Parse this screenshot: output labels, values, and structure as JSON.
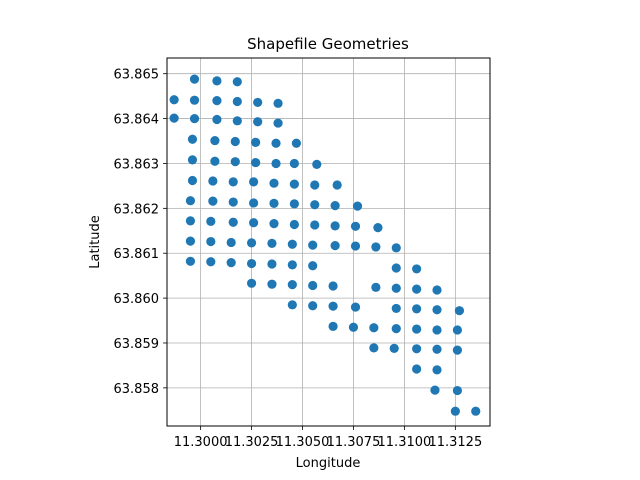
{
  "chart_data": {
    "type": "scatter",
    "title": "Shapefile Geometries",
    "xlabel": "Longitude",
    "ylabel": "Latitude",
    "xlim": [
      11.29835,
      11.3142
    ],
    "ylim": [
      63.85715,
      63.86535
    ],
    "xticks": [
      {
        "value": 11.3,
        "label": "11.3000"
      },
      {
        "value": 11.3025,
        "label": "11.3025"
      },
      {
        "value": 11.305,
        "label": "11.3050"
      },
      {
        "value": 11.3075,
        "label": "11.3075"
      },
      {
        "value": 11.31,
        "label": "11.3100"
      },
      {
        "value": 11.3125,
        "label": "11.3125"
      }
    ],
    "yticks": [
      {
        "value": 63.858,
        "label": "63.858"
      },
      {
        "value": 63.859,
        "label": "63.859"
      },
      {
        "value": 63.86,
        "label": "63.860"
      },
      {
        "value": 63.861,
        "label": "63.861"
      },
      {
        "value": 63.862,
        "label": "63.862"
      },
      {
        "value": 63.863,
        "label": "63.863"
      },
      {
        "value": 63.864,
        "label": "63.864"
      },
      {
        "value": 63.865,
        "label": "63.865"
      }
    ],
    "grid": true,
    "marker_color": "#1f77b4",
    "points": [
      [
        11.2997,
        63.86488
      ],
      [
        11.3008,
        63.86484
      ],
      [
        11.3018,
        63.86482
      ],
      [
        11.2987,
        63.86442
      ],
      [
        11.2997,
        63.86441
      ],
      [
        11.3008,
        63.8644
      ],
      [
        11.3018,
        63.86438
      ],
      [
        11.3028,
        63.86436
      ],
      [
        11.3038,
        63.86434
      ],
      [
        11.2987,
        63.86401
      ],
      [
        11.2997,
        63.864
      ],
      [
        11.3008,
        63.86398
      ],
      [
        11.3018,
        63.86395
      ],
      [
        11.3028,
        63.86393
      ],
      [
        11.3038,
        63.8639
      ],
      [
        11.2996,
        63.86354
      ],
      [
        11.3007,
        63.86351
      ],
      [
        11.3017,
        63.86349
      ],
      [
        11.3027,
        63.86347
      ],
      [
        11.3037,
        63.86345
      ],
      [
        11.3047,
        63.86345
      ],
      [
        11.2996,
        63.86308
      ],
      [
        11.3007,
        63.86305
      ],
      [
        11.3017,
        63.86304
      ],
      [
        11.3027,
        63.86302
      ],
      [
        11.3037,
        63.863
      ],
      [
        11.3046,
        63.863
      ],
      [
        11.3057,
        63.86298
      ],
      [
        11.2996,
        63.86262
      ],
      [
        11.3006,
        63.86261
      ],
      [
        11.3016,
        63.86259
      ],
      [
        11.3026,
        63.86259
      ],
      [
        11.3036,
        63.86256
      ],
      [
        11.3046,
        63.86254
      ],
      [
        11.3056,
        63.86252
      ],
      [
        11.3067,
        63.86252
      ],
      [
        11.2995,
        63.86217
      ],
      [
        11.3006,
        63.86216
      ],
      [
        11.3016,
        63.86214
      ],
      [
        11.3026,
        63.86212
      ],
      [
        11.3036,
        63.86211
      ],
      [
        11.3046,
        63.8621
      ],
      [
        11.3056,
        63.86208
      ],
      [
        11.3066,
        63.86206
      ],
      [
        11.3077,
        63.86205
      ],
      [
        11.2995,
        63.86172
      ],
      [
        11.3005,
        63.86171
      ],
      [
        11.3016,
        63.86169
      ],
      [
        11.3026,
        63.86168
      ],
      [
        11.3036,
        63.86166
      ],
      [
        11.3046,
        63.86164
      ],
      [
        11.3056,
        63.86163
      ],
      [
        11.3066,
        63.86161
      ],
      [
        11.3076,
        63.8616
      ],
      [
        11.3087,
        63.86157
      ],
      [
        11.2995,
        63.86127
      ],
      [
        11.3005,
        63.86126
      ],
      [
        11.3015,
        63.86124
      ],
      [
        11.3025,
        63.86123
      ],
      [
        11.3035,
        63.86122
      ],
      [
        11.3045,
        63.8612
      ],
      [
        11.3055,
        63.86118
      ],
      [
        11.3066,
        63.86117
      ],
      [
        11.3076,
        63.86116
      ],
      [
        11.3086,
        63.86114
      ],
      [
        11.3096,
        63.86112
      ],
      [
        11.2995,
        63.86082
      ],
      [
        11.3005,
        63.86081
      ],
      [
        11.3015,
        63.86079
      ],
      [
        11.3025,
        63.86077
      ],
      [
        11.3035,
        63.86076
      ],
      [
        11.3045,
        63.86074
      ],
      [
        11.3055,
        63.86072
      ],
      [
        11.3096,
        63.86067
      ],
      [
        11.3106,
        63.86065
      ],
      [
        11.3025,
        63.86033
      ],
      [
        11.3035,
        63.86031
      ],
      [
        11.3045,
        63.8603
      ],
      [
        11.3055,
        63.86028
      ],
      [
        11.3065,
        63.86027
      ],
      [
        11.3086,
        63.86024
      ],
      [
        11.3096,
        63.86022
      ],
      [
        11.3106,
        63.8602
      ],
      [
        11.3116,
        63.86018
      ],
      [
        11.3045,
        63.85985
      ],
      [
        11.3055,
        63.85983
      ],
      [
        11.3065,
        63.85982
      ],
      [
        11.3076,
        63.8598
      ],
      [
        11.3096,
        63.85977
      ],
      [
        11.3106,
        63.85976
      ],
      [
        11.3116,
        63.85974
      ],
      [
        11.3127,
        63.85972
      ],
      [
        11.3065,
        63.85937
      ],
      [
        11.3075,
        63.85935
      ],
      [
        11.3085,
        63.85934
      ],
      [
        11.3096,
        63.85932
      ],
      [
        11.3106,
        63.85931
      ],
      [
        11.3116,
        63.85929
      ],
      [
        11.3126,
        63.85929
      ],
      [
        11.3085,
        63.85889
      ],
      [
        11.3095,
        63.85888
      ],
      [
        11.3106,
        63.85887
      ],
      [
        11.3116,
        63.85886
      ],
      [
        11.3126,
        63.85884
      ],
      [
        11.3106,
        63.85842
      ],
      [
        11.3116,
        63.8584
      ],
      [
        11.3115,
        63.85795
      ],
      [
        11.3126,
        63.85794
      ],
      [
        11.3125,
        63.85748
      ],
      [
        11.3135,
        63.85748
      ]
    ]
  }
}
